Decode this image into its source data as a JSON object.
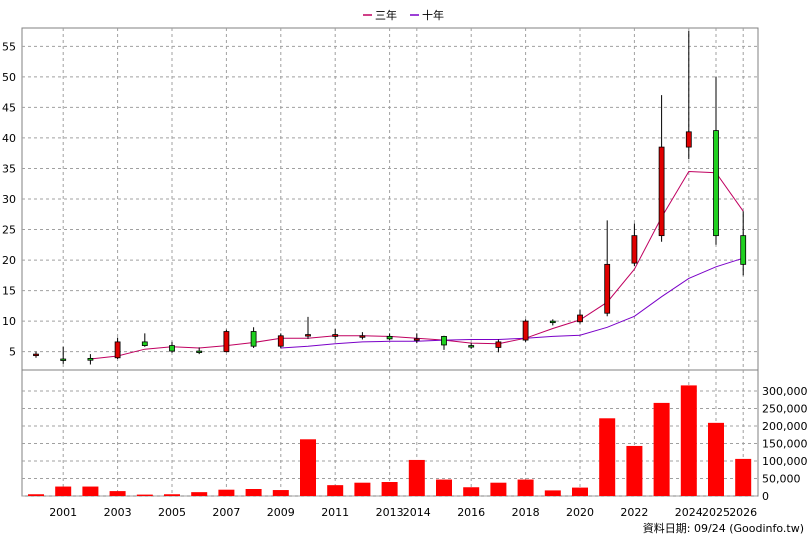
{
  "legend": {
    "items": [
      {
        "label": "三年",
        "color": "#c00060"
      },
      {
        "label": "十年",
        "color": "#7a00c8"
      }
    ],
    "placement": "top-center"
  },
  "footer": {
    "text": "資料日期: 09/24  (Goodinfo.tw)"
  },
  "colors": {
    "up": "#e00000",
    "down": "#20d020",
    "volume": "#ff0000",
    "grid": "#a0a0a0"
  },
  "chart_data": [
    {
      "type": "candlestick",
      "title": "",
      "grid": true,
      "ylim": [
        2,
        58
      ],
      "y_ticks": [
        5,
        10,
        15,
        20,
        25,
        30,
        35,
        40,
        45,
        50,
        55
      ],
      "x_tick_labels": [
        "2001",
        "2003",
        "2005",
        "2007",
        "2009",
        "2011",
        "2013",
        "2014",
        "2016",
        "2018",
        "2020",
        "2022",
        "2024",
        "2025",
        "2026"
      ],
      "years": [
        2000,
        2001,
        2002,
        2003,
        2004,
        2005,
        2006,
        2007,
        2008,
        2009,
        2010,
        2011,
        2012,
        2013,
        2014,
        2015,
        2016,
        2017,
        2018,
        2019,
        2020,
        2021,
        2022,
        2023,
        2024,
        2025,
        2026
      ],
      "candles": [
        {
          "o": 4.6,
          "h": 5.0,
          "l": 4.0,
          "c": 4.6
        },
        {
          "o": 3.8,
          "h": 5.8,
          "l": 3.0,
          "c": 3.6
        },
        {
          "o": 3.9,
          "h": 4.6,
          "l": 2.9,
          "c": 3.6
        },
        {
          "o": 4.0,
          "h": 7.3,
          "l": 3.8,
          "c": 6.6
        },
        {
          "o": 6.6,
          "h": 8.0,
          "l": 5.8,
          "c": 6.0
        },
        {
          "o": 6.0,
          "h": 6.6,
          "l": 4.8,
          "c": 5.1
        },
        {
          "o": 5.1,
          "h": 5.7,
          "l": 4.6,
          "c": 5.0
        },
        {
          "o": 5.0,
          "h": 8.6,
          "l": 4.9,
          "c": 8.3
        },
        {
          "o": 8.3,
          "h": 9.0,
          "l": 5.6,
          "c": 5.9
        },
        {
          "o": 5.9,
          "h": 8.0,
          "l": 5.6,
          "c": 7.6
        },
        {
          "o": 7.7,
          "h": 10.7,
          "l": 7.1,
          "c": 7.8
        },
        {
          "o": 7.5,
          "h": 8.7,
          "l": 7.0,
          "c": 7.8
        },
        {
          "o": 7.5,
          "h": 8.2,
          "l": 7.0,
          "c": 7.6
        },
        {
          "o": 7.5,
          "h": 8.0,
          "l": 6.9,
          "c": 7.1
        },
        {
          "o": 7.1,
          "h": 8.0,
          "l": 6.4,
          "c": 7.1
        },
        {
          "o": 7.5,
          "h": 7.6,
          "l": 5.3,
          "c": 6.1
        },
        {
          "o": 6.0,
          "h": 6.4,
          "l": 5.5,
          "c": 5.8
        },
        {
          "o": 5.7,
          "h": 7.0,
          "l": 4.9,
          "c": 6.6
        },
        {
          "o": 6.9,
          "h": 10.3,
          "l": 6.6,
          "c": 10.0
        },
        {
          "o": 10.0,
          "h": 10.3,
          "l": 9.3,
          "c": 9.8
        },
        {
          "o": 9.9,
          "h": 11.9,
          "l": 9.6,
          "c": 11.0
        },
        {
          "o": 11.3,
          "h": 26.5,
          "l": 10.8,
          "c": 19.3
        },
        {
          "o": 19.5,
          "h": 26.0,
          "l": 19.0,
          "c": 24.0
        },
        {
          "o": 24.0,
          "h": 47.0,
          "l": 23.0,
          "c": 38.5
        },
        {
          "o": 38.5,
          "h": 57.5,
          "l": 36.5,
          "c": 41.0
        },
        {
          "o": 41.2,
          "h": 50.0,
          "l": 22.5,
          "c": 24.0
        },
        {
          "o": 24.0,
          "h": 28.0,
          "l": 17.5,
          "c": 19.3
        }
      ],
      "series": [
        {
          "name": "三年",
          "values": [
            null,
            null,
            3.8,
            4.3,
            5.4,
            5.8,
            5.6,
            6.0,
            6.5,
            7.2,
            7.2,
            7.6,
            7.6,
            7.5,
            7.2,
            6.9,
            6.4,
            6.3,
            7.2,
            8.8,
            10.2,
            13.1,
            18.5,
            27.0,
            34.5,
            34.3,
            28.0
          ]
        },
        {
          "name": "十年",
          "values": [
            null,
            null,
            null,
            null,
            null,
            null,
            null,
            null,
            null,
            5.6,
            5.9,
            6.3,
            6.6,
            6.7,
            6.7,
            6.9,
            7.0,
            7.0,
            7.2,
            7.5,
            7.7,
            9.0,
            10.8,
            14.0,
            17.0,
            18.9,
            20.3
          ]
        }
      ]
    },
    {
      "type": "bar",
      "title": "",
      "grid": true,
      "ylim": [
        0,
        320000
      ],
      "y_ticks": [
        0,
        50000,
        100000,
        150000,
        200000,
        250000,
        300000
      ],
      "y_tick_labels": [
        "0",
        "50,000",
        "100,000",
        "150,000",
        "200,000",
        "250,000",
        "300,000"
      ],
      "categories": [
        2000,
        2001,
        2002,
        2003,
        2004,
        2005,
        2006,
        2007,
        2008,
        2009,
        2010,
        2011,
        2012,
        2013,
        2014,
        2015,
        2016,
        2017,
        2018,
        2019,
        2020,
        2021,
        2022,
        2023,
        2024,
        2025,
        2026
      ],
      "values": [
        5000,
        27000,
        27000,
        14000,
        4000,
        5000,
        11000,
        18000,
        20000,
        17000,
        162000,
        31000,
        38000,
        40000,
        103000,
        47000,
        25000,
        38000,
        47000,
        16000,
        24000,
        222000,
        143000,
        266000,
        316000,
        209000,
        106000
      ]
    }
  ]
}
